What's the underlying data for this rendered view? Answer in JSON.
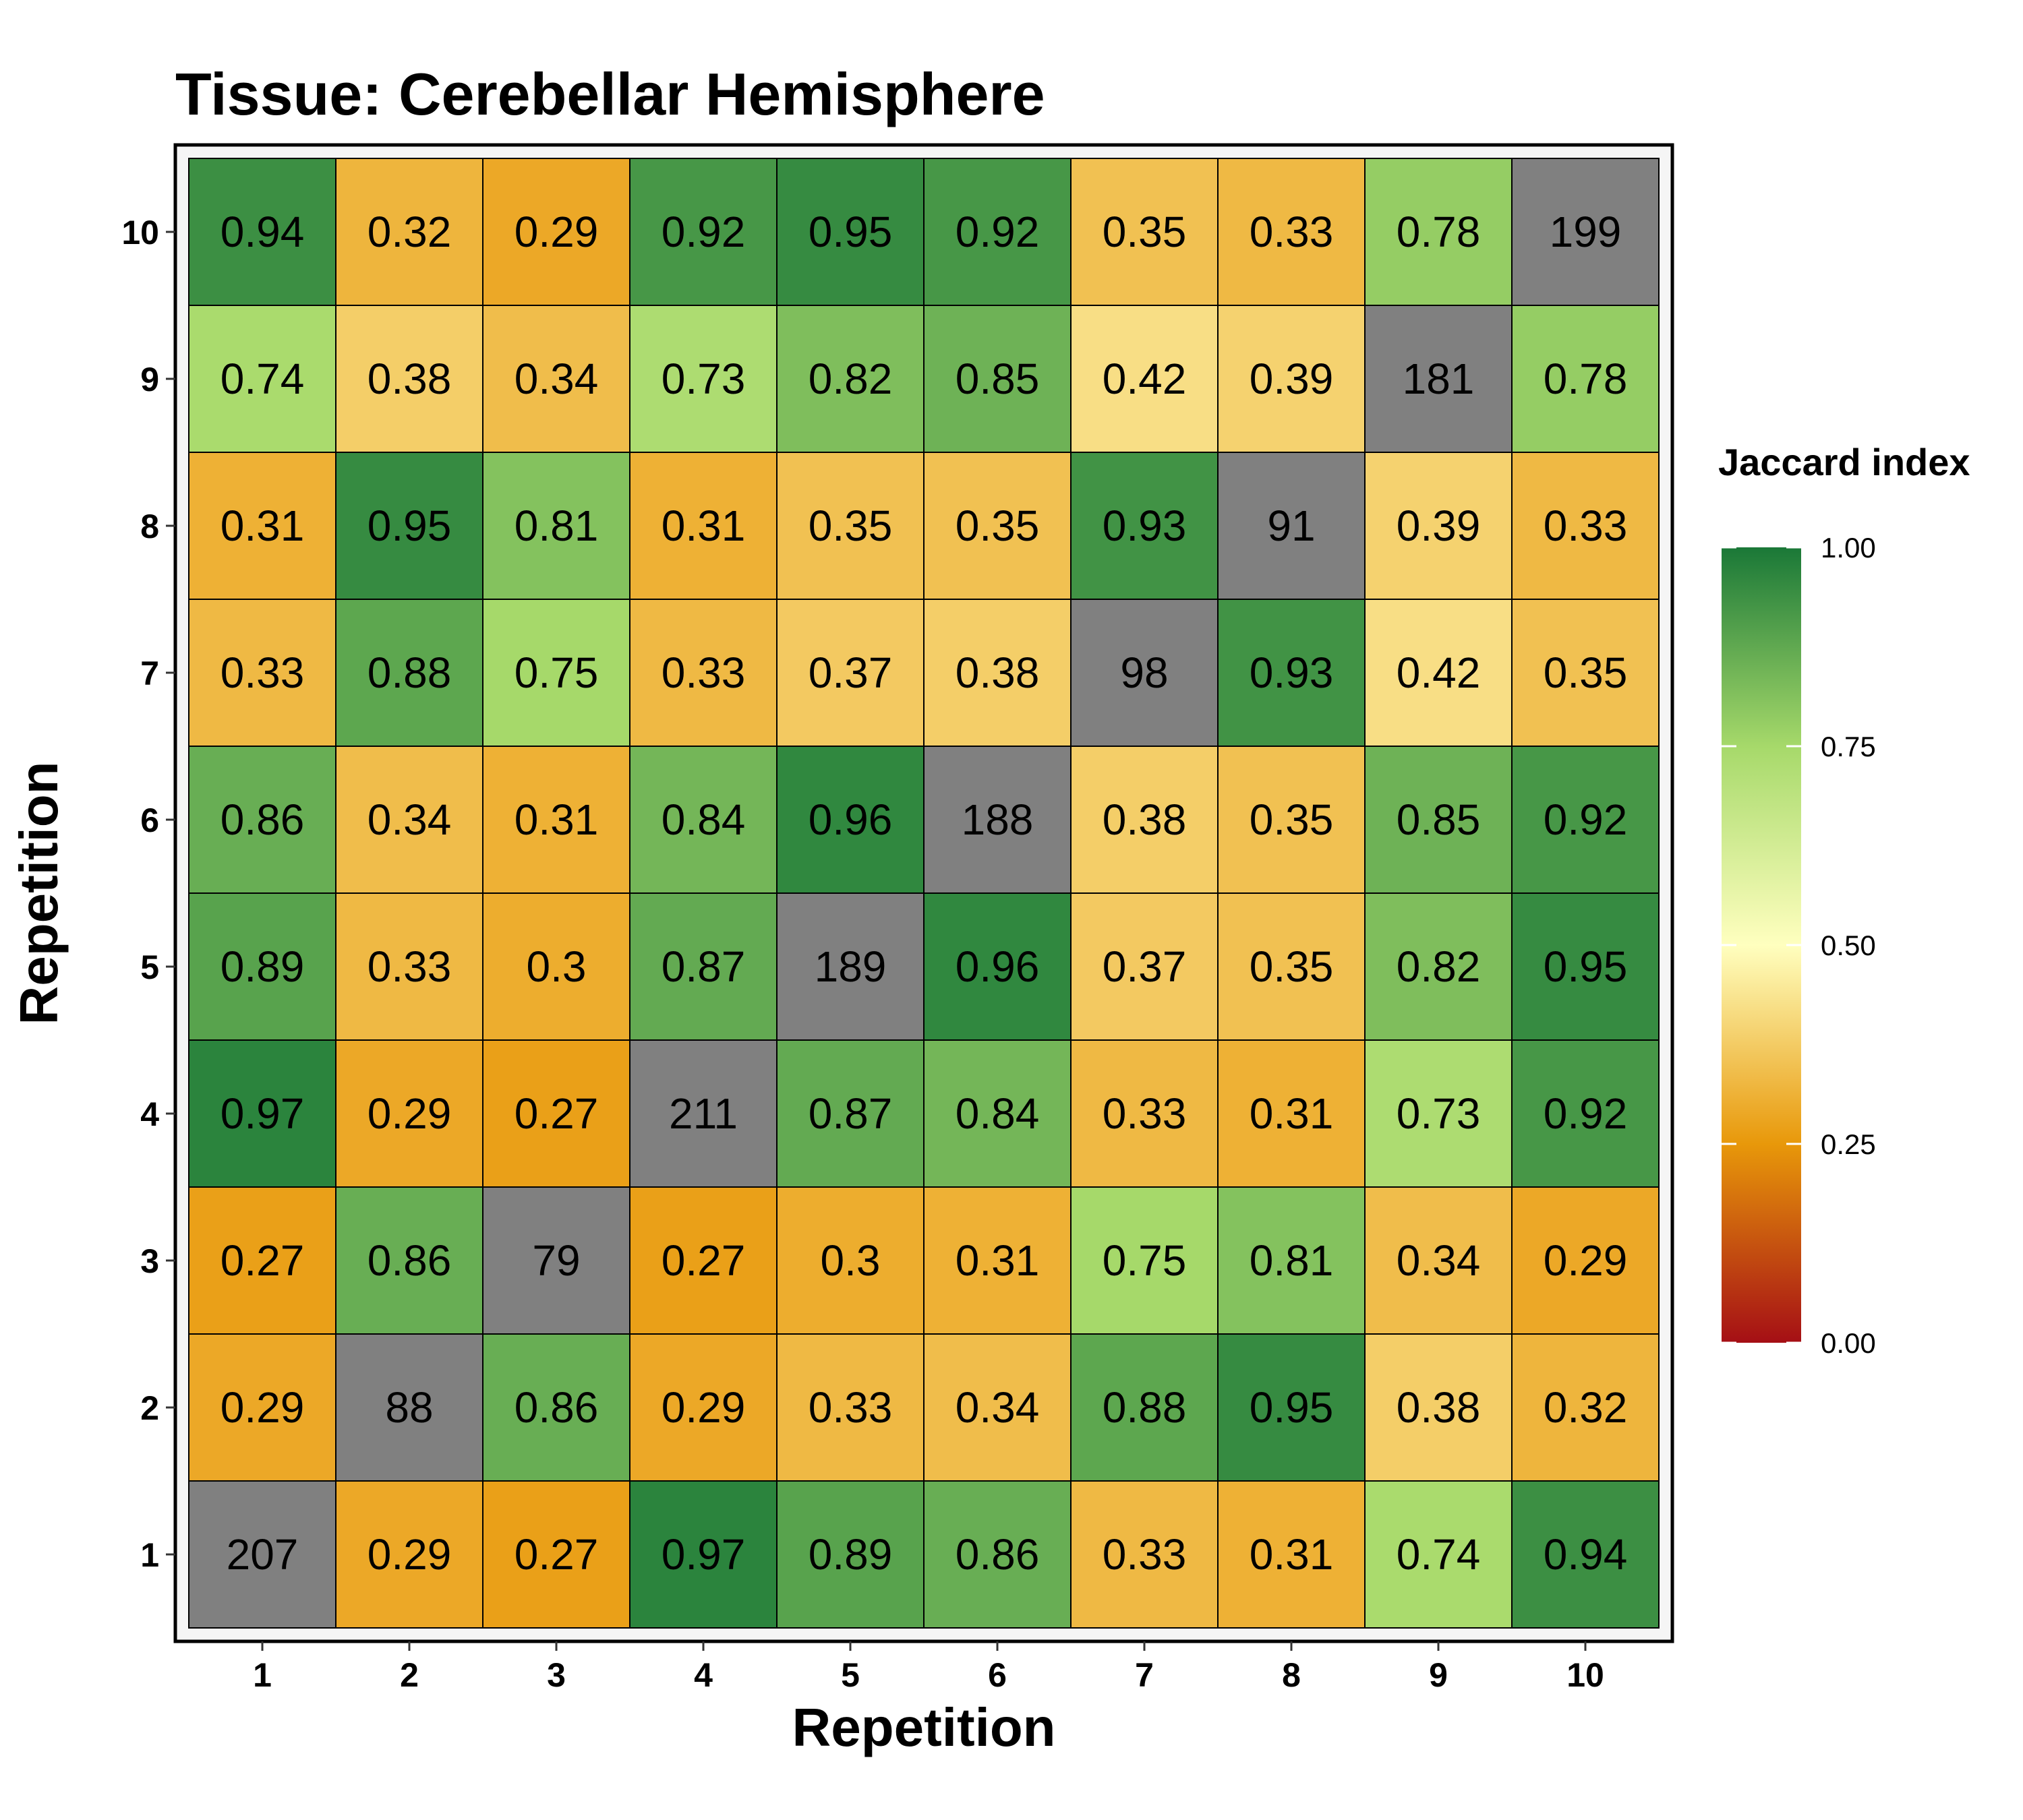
{
  "chart_data": {
    "type": "heatmap",
    "title": "Tissue: Cerebellar Hemisphere",
    "xlabel": "Repetition",
    "ylabel": "Repetition",
    "x_categories": [
      "1",
      "2",
      "3",
      "4",
      "5",
      "6",
      "7",
      "8",
      "9",
      "10"
    ],
    "y_categories": [
      "1",
      "2",
      "3",
      "4",
      "5",
      "6",
      "7",
      "8",
      "9",
      "10"
    ],
    "rows": [
      [
        "207",
        "0.29",
        "0.27",
        "0.97",
        "0.89",
        "0.86",
        "0.33",
        "0.31",
        "0.74",
        "0.94"
      ],
      [
        "0.29",
        "88",
        "0.86",
        "0.29",
        "0.33",
        "0.34",
        "0.88",
        "0.95",
        "0.38",
        "0.32"
      ],
      [
        "0.27",
        "0.86",
        "79",
        "0.27",
        "0.3",
        "0.31",
        "0.75",
        "0.81",
        "0.34",
        "0.29"
      ],
      [
        "0.97",
        "0.29",
        "0.27",
        "211",
        "0.87",
        "0.84",
        "0.33",
        "0.31",
        "0.73",
        "0.92"
      ],
      [
        "0.89",
        "0.33",
        "0.3",
        "0.87",
        "189",
        "0.96",
        "0.37",
        "0.35",
        "0.82",
        "0.95"
      ],
      [
        "0.86",
        "0.34",
        "0.31",
        "0.84",
        "0.96",
        "188",
        "0.38",
        "0.35",
        "0.85",
        "0.92"
      ],
      [
        "0.33",
        "0.88",
        "0.75",
        "0.33",
        "0.37",
        "0.38",
        "98",
        "0.93",
        "0.42",
        "0.35"
      ],
      [
        "0.31",
        "0.95",
        "0.81",
        "0.31",
        "0.35",
        "0.35",
        "0.93",
        "91",
        "0.39",
        "0.33"
      ],
      [
        "0.74",
        "0.38",
        "0.34",
        "0.73",
        "0.82",
        "0.85",
        "0.42",
        "0.39",
        "181",
        "0.78"
      ],
      [
        "0.94",
        "0.32",
        "0.29",
        "0.92",
        "0.95",
        "0.92",
        "0.35",
        "0.33",
        "0.78",
        "199"
      ]
    ],
    "diagonal_color": "#808080",
    "legend": {
      "title": "Jaccard index",
      "ticks": [
        "0.00",
        "0.25",
        "0.50",
        "0.75",
        "1.00"
      ],
      "range": [
        0,
        1
      ],
      "placement": "right",
      "color_stops": [
        {
          "value": 0.0,
          "color": "#a50f15"
        },
        {
          "value": 0.25,
          "color": "#e8980a"
        },
        {
          "value": 0.5,
          "color": "#ffffbf"
        },
        {
          "value": 0.75,
          "color": "#a6d96a"
        },
        {
          "value": 1.0,
          "color": "#1a7837"
        }
      ]
    },
    "grid": false
  }
}
